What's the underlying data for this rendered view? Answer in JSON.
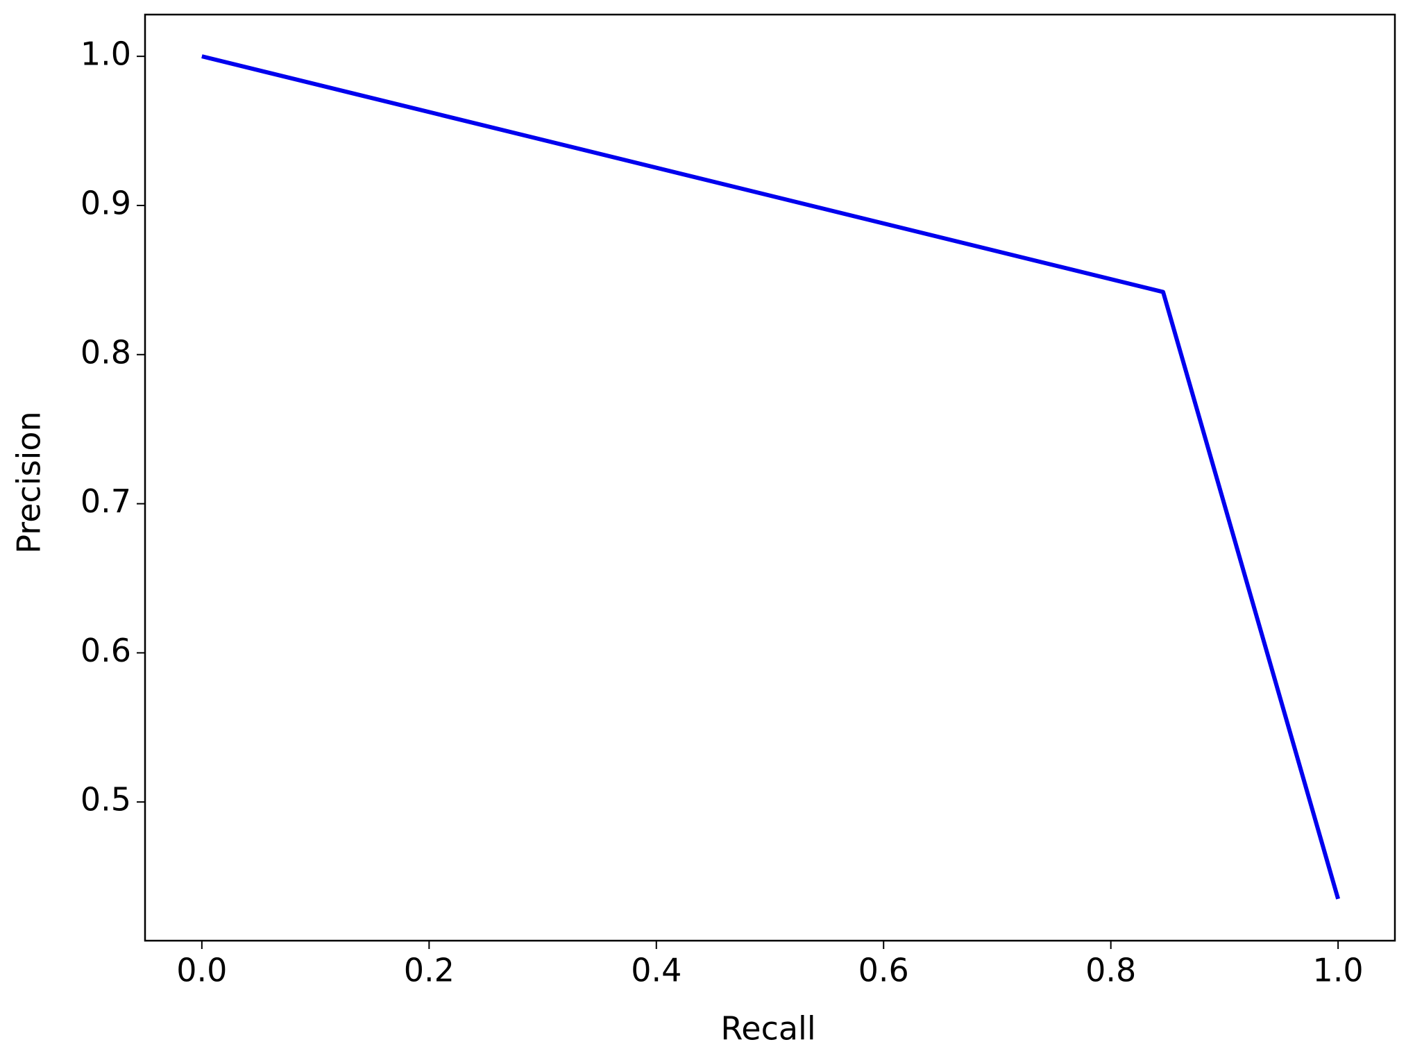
{
  "chart_data": {
    "type": "line",
    "x_label": "Recall",
    "y_label": "Precision",
    "x": [
      0,
      0.846,
      1
    ],
    "series": [
      {
        "color": "#0000ee",
        "values": [
          1.0,
          0.842,
          0.435
        ]
      }
    ],
    "xlim": [
      -0.05,
      1.05
    ],
    "ylim": [
      0.407,
      1.028
    ],
    "xticks": [
      {
        "value": 0,
        "label": "0.0"
      },
      0.2,
      0.4,
      0.6,
      0.8,
      {
        "value": 1,
        "label": "1.0"
      }
    ],
    "yticks": [
      0.5,
      0.6,
      0.7,
      0.8,
      0.9,
      {
        "value": 1,
        "label": "1.0"
      }
    ],
    "grid": false
  }
}
